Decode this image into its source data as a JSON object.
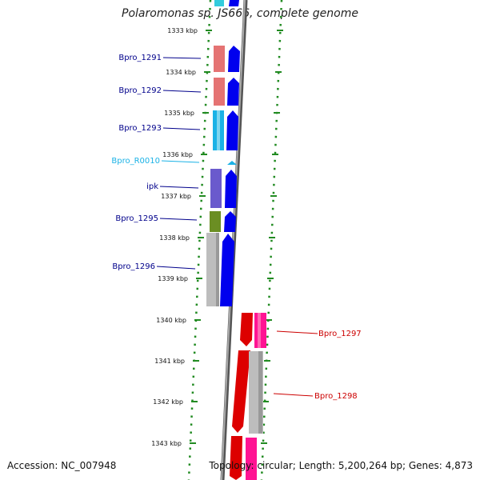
{
  "title": "Polaromonas sp. JS666, complete genome",
  "accession": "Accession: NC_007948",
  "topology": "Topology: circular; Length: 5,200,264 bp; Genes: 4,873",
  "scale_labels": [
    "1333 kbp",
    "1334 kbp",
    "1335 kbp",
    "1336 kbp",
    "1337 kbp",
    "1338 kbp",
    "1339 kbp",
    "1340 kbp",
    "1341 kbp",
    "1342 kbp",
    "1343 kbp"
  ],
  "colors": {
    "forward_label": "#00008b",
    "reverse_label": "#cc0000",
    "rna_label": "#1ab2e6",
    "scale_tick": "#228b22",
    "backbone": "#808080"
  },
  "genes": [
    {
      "label": "Bpro_1291",
      "strand": "forward"
    },
    {
      "label": "Bpro_1292",
      "strand": "forward"
    },
    {
      "label": "Bpro_1293",
      "strand": "forward"
    },
    {
      "label": "Bpro_R0010",
      "strand": "forward"
    },
    {
      "label": "ipk",
      "strand": "forward"
    },
    {
      "label": "Bpro_1295",
      "strand": "forward"
    },
    {
      "label": "Bpro_1296",
      "strand": "forward"
    },
    {
      "label": "Bpro_1297",
      "strand": "reverse"
    },
    {
      "label": "Bpro_1298",
      "strand": "reverse"
    }
  ]
}
